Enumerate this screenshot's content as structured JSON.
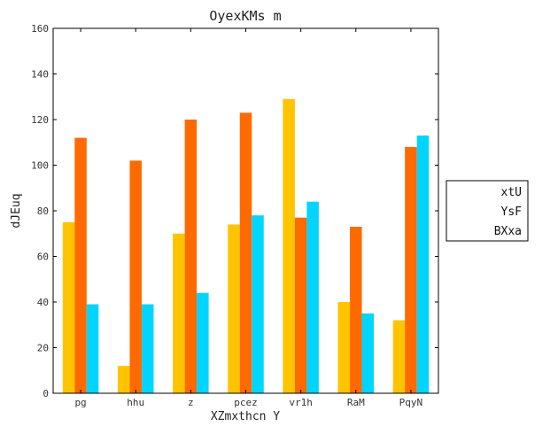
{
  "chart_data": {
    "type": "bar",
    "title": "OyexKMs  m",
    "xlabel": "XZmxthcn Y",
    "ylabel": "dJEuq",
    "categories": [
      "pg",
      "hhu",
      "z",
      "pcez",
      "vr1h",
      "RaM",
      "PqyN"
    ],
    "ylim": [
      0,
      160
    ],
    "yticks": [
      0,
      20,
      40,
      60,
      80,
      100,
      120,
      140,
      160
    ],
    "grid": false,
    "legend_position": "right",
    "series": [
      {
        "name": "xtU",
        "color": "#ffc400",
        "values": [
          75,
          12,
          70,
          74,
          129,
          40,
          32
        ]
      },
      {
        "name": "YsF",
        "color": "#ff6a00",
        "values": [
          112,
          102,
          120,
          123,
          77,
          73,
          108
        ]
      },
      {
        "name": "BXxa",
        "color": "#00d5ff",
        "values": [
          39,
          39,
          44,
          78,
          84,
          35,
          113
        ]
      }
    ]
  }
}
